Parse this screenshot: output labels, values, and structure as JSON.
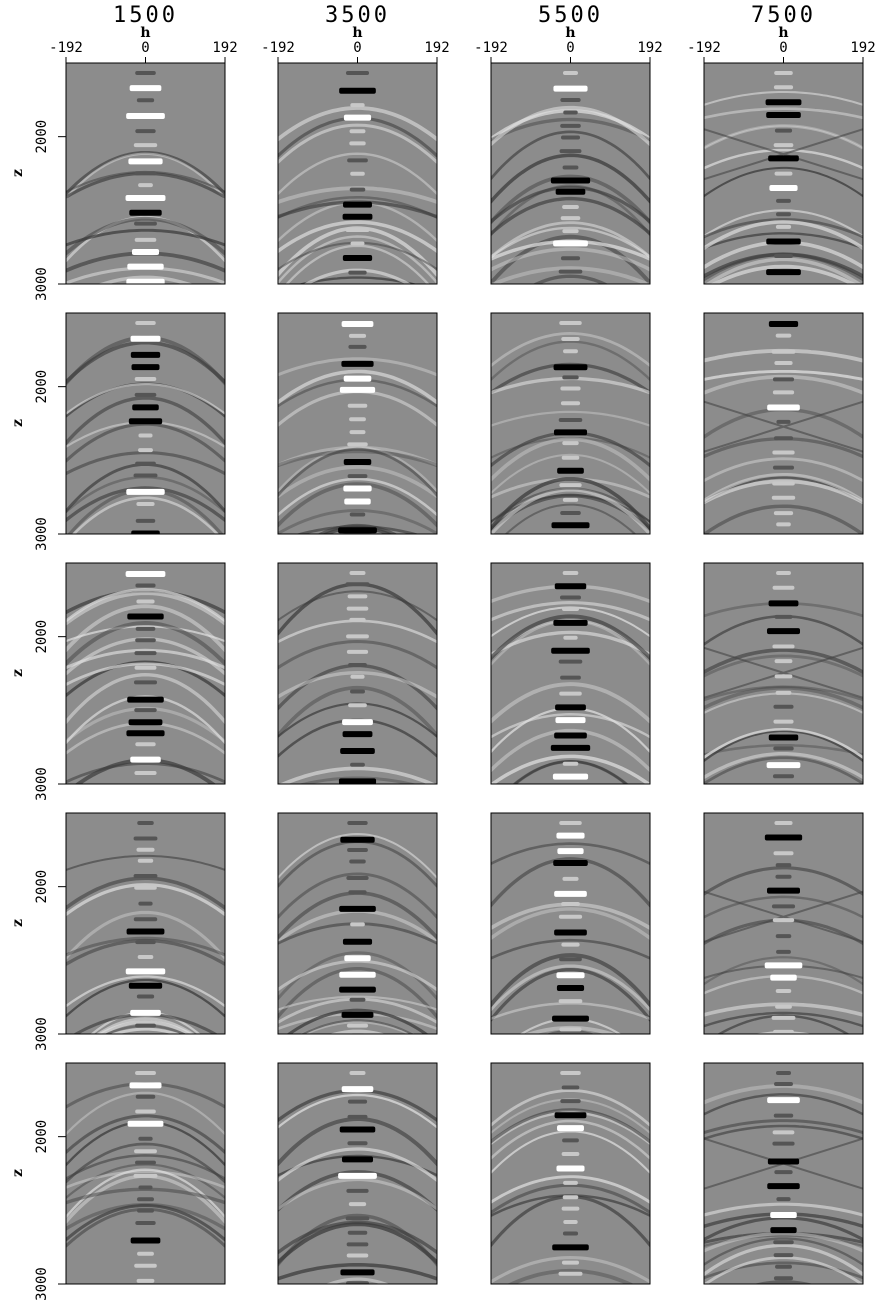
{
  "figure": {
    "column_titles": [
      "1500",
      "3500",
      "5500",
      "7500"
    ],
    "rows": 5,
    "h_axis": {
      "label": "h",
      "xlim": [
        -192,
        192
      ],
      "ticks": [
        -192,
        0,
        192
      ]
    },
    "z_axis": {
      "label": "z",
      "zlim": [
        1500,
        3000
      ],
      "ticks": [
        2000,
        3000
      ]
    }
  }
}
